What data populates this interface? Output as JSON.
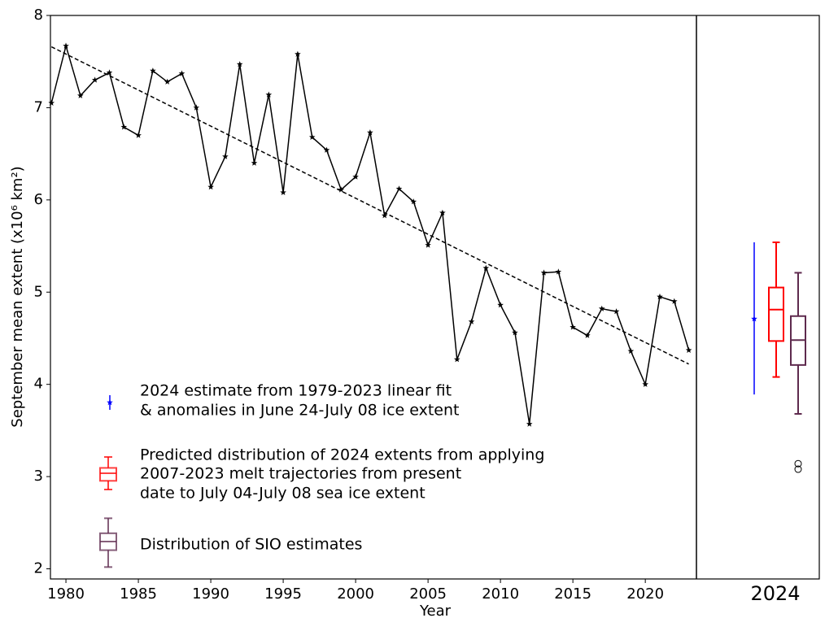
{
  "chart_data": {
    "type": "line",
    "xlabel": "Year",
    "ylabel": "September mean extent (x10⁶ km²)",
    "xlim": [
      1978.93,
      2023.53
    ],
    "ylim": [
      1.89,
      8
    ],
    "xticks": [
      1980,
      1985,
      1990,
      1995,
      2000,
      2005,
      2010,
      2015,
      2020
    ],
    "yticks": [
      2,
      3,
      4,
      5,
      6,
      7,
      8
    ],
    "x": [
      1979,
      1980,
      1981,
      1982,
      1983,
      1984,
      1985,
      1986,
      1987,
      1988,
      1989,
      1990,
      1991,
      1992,
      1993,
      1994,
      1995,
      1996,
      1997,
      1998,
      1999,
      2000,
      2001,
      2002,
      2003,
      2004,
      2005,
      2006,
      2007,
      2008,
      2009,
      2010,
      2011,
      2012,
      2013,
      2014,
      2015,
      2016,
      2017,
      2018,
      2019,
      2020,
      2021,
      2022,
      2023
    ],
    "series": [
      {
        "color": "#000000",
        "marker": "star",
        "values": [
          7.05,
          7.67,
          7.13,
          7.3,
          7.38,
          6.79,
          6.7,
          7.4,
          7.28,
          7.37,
          7.0,
          6.14,
          6.47,
          7.47,
          6.4,
          7.14,
          6.08,
          7.58,
          6.68,
          6.54,
          6.11,
          6.25,
          6.73,
          5.83,
          6.12,
          5.98,
          5.51,
          5.86,
          4.27,
          4.68,
          5.26,
          4.86,
          4.56,
          3.57,
          5.21,
          5.22,
          4.62,
          4.53,
          4.82,
          4.79,
          4.36,
          4.0,
          4.95,
          4.9,
          4.37
        ]
      }
    ],
    "trend": {
      "x": [
        1979,
        2023
      ],
      "values": [
        7.66,
        4.22
      ],
      "color": "#000000",
      "dashed": true
    },
    "estimate_category": "2024",
    "estimates": [
      {
        "type": "errorbar",
        "color": "#0000ff",
        "value": 4.71,
        "low": 3.89,
        "high": 5.54,
        "name": [
          "2024 estimate from 1979-2023 linear fit",
          "& anomalies in June 24-July 08 ice extent"
        ]
      },
      {
        "type": "box",
        "color": "#ff0000",
        "whislo": 4.08,
        "q1": 4.47,
        "med": 4.81,
        "q3": 5.05,
        "whishi": 5.54,
        "fliers": [],
        "name": [
          "Predicted distribution of 2024 extents from applying",
          "2007-2023 melt trajectories from present",
          "date to July 04-July 08 sea ice extent"
        ]
      },
      {
        "type": "box",
        "color": "#5e2a4e",
        "whislo": 3.68,
        "q1": 4.21,
        "med": 4.48,
        "q3": 4.74,
        "whishi": 5.21,
        "fliers": [
          3.14,
          3.08
        ],
        "name": [
          "Distribution of SIO estimates"
        ]
      }
    ]
  }
}
